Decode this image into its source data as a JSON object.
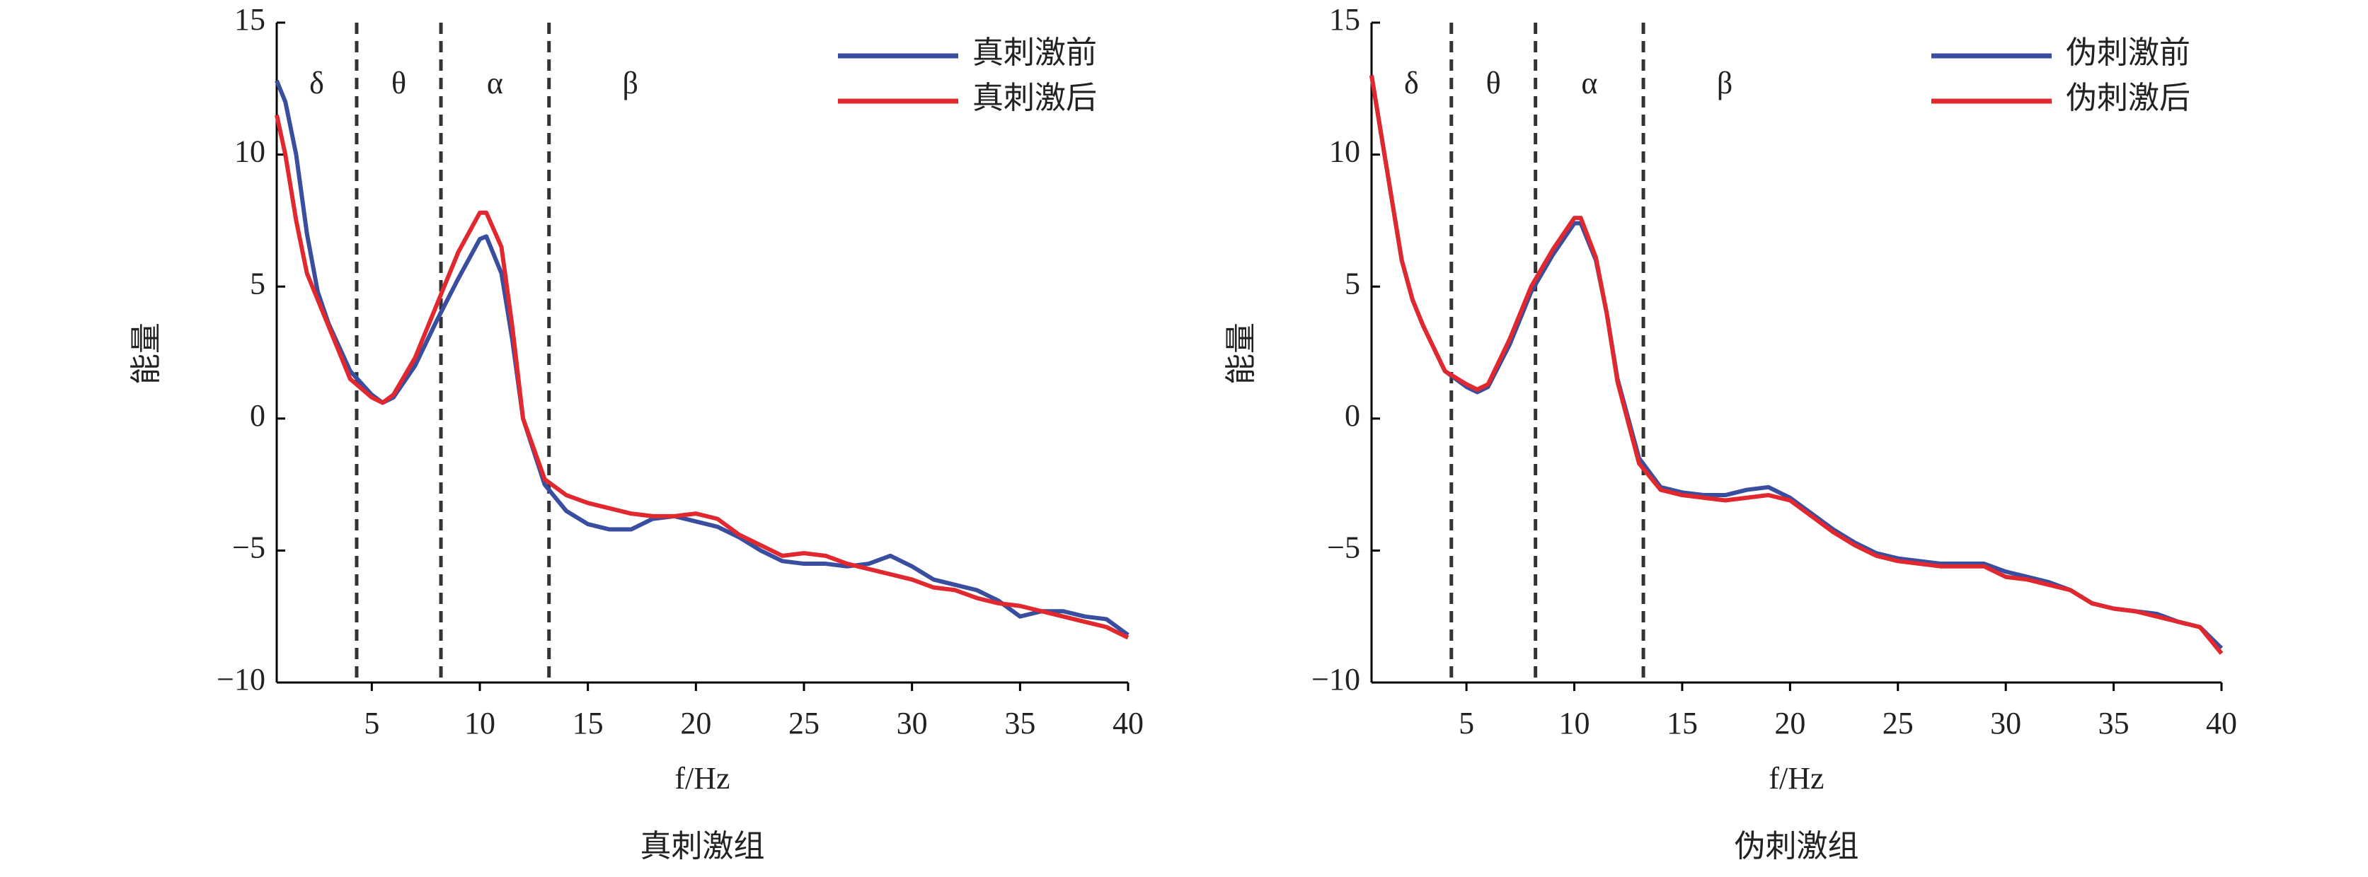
{
  "chart_data": [
    {
      "type": "line",
      "title": "真刺激组",
      "x_label": "f/Hz",
      "y_label": "能量",
      "legend": "upper right",
      "grid": false,
      "xlim": [
        0.6,
        40
      ],
      "xticks": [
        5,
        10,
        15,
        20,
        25,
        30,
        35,
        40
      ],
      "ylim": [
        -10,
        15
      ],
      "yticks": [
        {
          "value": -10,
          "label": "−10"
        },
        {
          "value": -5,
          "label": "−5"
        },
        0,
        5,
        10,
        15
      ],
      "bands": [
        {
          "label": "δ"
        },
        {
          "label": "θ"
        },
        {
          "label": "α"
        },
        {
          "label": "β"
        }
      ],
      "band_edges": [
        4.3,
        8.2,
        13.2
      ],
      "x": [
        0.6,
        1,
        1.5,
        2,
        2.5,
        3,
        4,
        5,
        5.5,
        6,
        7,
        8,
        9,
        10,
        10.3,
        11,
        11.5,
        12,
        13,
        14,
        15,
        16,
        17,
        18,
        19,
        20,
        21,
        22,
        23,
        24,
        25,
        26,
        27,
        28,
        29,
        30,
        31,
        32,
        33,
        34,
        35,
        36,
        37,
        38,
        39,
        40
      ],
      "series": [
        {
          "name": "真刺激前",
          "color": "#3a4ea0",
          "values": [
            12.8,
            12,
            10,
            7,
            4.8,
            3.6,
            1.8,
            0.9,
            0.6,
            0.8,
            2,
            3.7,
            5.3,
            6.8,
            6.9,
            5.5,
            3,
            0,
            -2.5,
            -3.5,
            -4,
            -4.2,
            -4.2,
            -3.8,
            -3.7,
            -3.9,
            -4.1,
            -4.5,
            -5,
            -5.4,
            -5.5,
            -5.5,
            -5.6,
            -5.5,
            -5.2,
            -5.6,
            -6.1,
            -6.3,
            -6.5,
            -6.9,
            -7.5,
            -7.3,
            -7.3,
            -7.5,
            -7.6,
            -8.2
          ]
        },
        {
          "name": "真刺激后",
          "color": "#e0282e",
          "values": [
            11.5,
            10,
            7.5,
            5.5,
            4.5,
            3.5,
            1.5,
            0.8,
            0.6,
            0.9,
            2.3,
            4.3,
            6.3,
            7.8,
            7.8,
            6.5,
            3.5,
            0,
            -2.3,
            -2.9,
            -3.2,
            -3.4,
            -3.6,
            -3.7,
            -3.7,
            -3.6,
            -3.8,
            -4.4,
            -4.8,
            -5.2,
            -5.1,
            -5.2,
            -5.5,
            -5.7,
            -5.9,
            -6.1,
            -6.4,
            -6.5,
            -6.8,
            -7,
            -7.1,
            -7.3,
            -7.5,
            -7.7,
            -7.9,
            -8.3
          ]
        }
      ]
    },
    {
      "type": "line",
      "title": "伪刺激组",
      "x_label": "f/Hz",
      "y_label": "能量",
      "legend": "upper right",
      "grid": false,
      "xlim": [
        0.6,
        40
      ],
      "xticks": [
        5,
        10,
        15,
        20,
        25,
        30,
        35,
        40
      ],
      "ylim": [
        -10,
        15
      ],
      "yticks": [
        {
          "value": -10,
          "label": "−10"
        },
        {
          "value": -5,
          "label": "−5"
        },
        0,
        5,
        10,
        15
      ],
      "bands": [
        {
          "label": "δ"
        },
        {
          "label": "θ"
        },
        {
          "label": "α"
        },
        {
          "label": "β"
        }
      ],
      "band_edges": [
        4.3,
        8.2,
        13.2
      ],
      "x": [
        0.6,
        1,
        1.5,
        2,
        2.5,
        3,
        4,
        5,
        5.5,
        6,
        7,
        8,
        9,
        10,
        10.3,
        11,
        11.5,
        12,
        13,
        14,
        15,
        16,
        17,
        18,
        19,
        20,
        21,
        22,
        23,
        24,
        25,
        26,
        27,
        28,
        29,
        30,
        31,
        32,
        33,
        34,
        35,
        36,
        37,
        38,
        39,
        40
      ],
      "series": [
        {
          "name": "伪刺激前",
          "color": "#3a4ea0",
          "values": [
            13,
            11,
            8.5,
            6,
            4.5,
            3.5,
            1.8,
            1.2,
            1,
            1.2,
            2.8,
            4.8,
            6.2,
            7.4,
            7.4,
            6,
            4,
            1.5,
            -1.5,
            -2.6,
            -2.8,
            -2.9,
            -2.9,
            -2.7,
            -2.6,
            -3,
            -3.6,
            -4.2,
            -4.7,
            -5.1,
            -5.3,
            -5.4,
            -5.5,
            -5.5,
            -5.5,
            -5.8,
            -6,
            -6.2,
            -6.5,
            -7,
            -7.2,
            -7.3,
            -7.4,
            -7.7,
            -7.9,
            -8.7
          ]
        },
        {
          "name": "伪刺激后",
          "color": "#e0282e",
          "values": [
            13,
            11,
            8.5,
            6,
            4.5,
            3.5,
            1.8,
            1.3,
            1.1,
            1.3,
            3,
            5,
            6.4,
            7.6,
            7.6,
            6.1,
            4,
            1.4,
            -1.7,
            -2.7,
            -2.9,
            -3,
            -3.1,
            -3,
            -2.9,
            -3.1,
            -3.7,
            -4.3,
            -4.8,
            -5.2,
            -5.4,
            -5.5,
            -5.6,
            -5.6,
            -5.6,
            -6,
            -6.1,
            -6.3,
            -6.5,
            -7,
            -7.2,
            -7.3,
            -7.5,
            -7.7,
            -7.9,
            -8.9
          ]
        }
      ]
    }
  ]
}
